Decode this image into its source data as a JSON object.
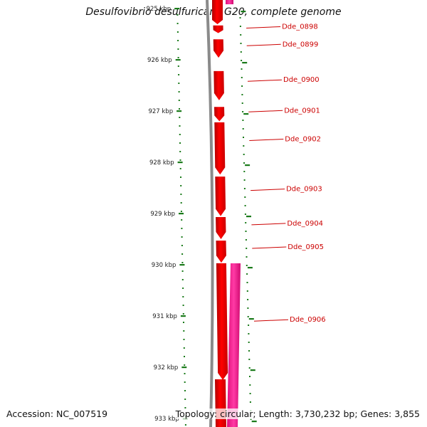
{
  "title": "Desulfovibrio desulfuricans G20, complete genome",
  "accession": "Accession: NC_007519",
  "topology": "Topology: circular; Length: 3,730,232 bp; Genes: 3,855",
  "colors": {
    "forward_gene": "#ff0000",
    "reverse_gene": "#ff1493",
    "backbone": "#888888",
    "tick": "#1a7a1a",
    "label": "#cc0000"
  },
  "scale": {
    "labels": [
      "925 kbp",
      "926 kbp",
      "927 kbp",
      "928 kbp",
      "929 kbp",
      "930 kbp",
      "931 kbp",
      "932 kbp",
      "933 kbp"
    ],
    "values_kbp": [
      925,
      926,
      927,
      928,
      929,
      930,
      931,
      932,
      933
    ]
  },
  "genes": [
    {
      "id": "Dde_0898",
      "label": "Dde_0898",
      "start_kbp": 925.33,
      "end_kbp": 925.48,
      "strand": "forward"
    },
    {
      "id": "Dde_0899",
      "label": "Dde_0899",
      "start_kbp": 925.6,
      "end_kbp": 925.96,
      "strand": "forward"
    },
    {
      "id": "Dde_0900",
      "label": "Dde_0900",
      "start_kbp": 926.22,
      "end_kbp": 926.79,
      "strand": "forward"
    },
    {
      "id": "Dde_0901",
      "label": "Dde_0901",
      "start_kbp": 926.92,
      "end_kbp": 927.2,
      "strand": "forward"
    },
    {
      "id": "Dde_0902",
      "label": "Dde_0902",
      "start_kbp": 927.22,
      "end_kbp": 928.24,
      "strand": "forward"
    },
    {
      "id": "Dde_0903",
      "label": "Dde_0903",
      "start_kbp": 928.28,
      "end_kbp": 929.05,
      "strand": "forward"
    },
    {
      "id": "Dde_0904",
      "label": "Dde_0904",
      "start_kbp": 929.07,
      "end_kbp": 929.5,
      "strand": "forward"
    },
    {
      "id": "Dde_0905",
      "label": "Dde_0905",
      "start_kbp": 929.53,
      "end_kbp": 929.96,
      "strand": "forward"
    },
    {
      "id": "Dde_0906",
      "label": "Dde_0906",
      "start_kbp": 929.97,
      "end_kbp": 932.25,
      "strand": "forward"
    }
  ]
}
